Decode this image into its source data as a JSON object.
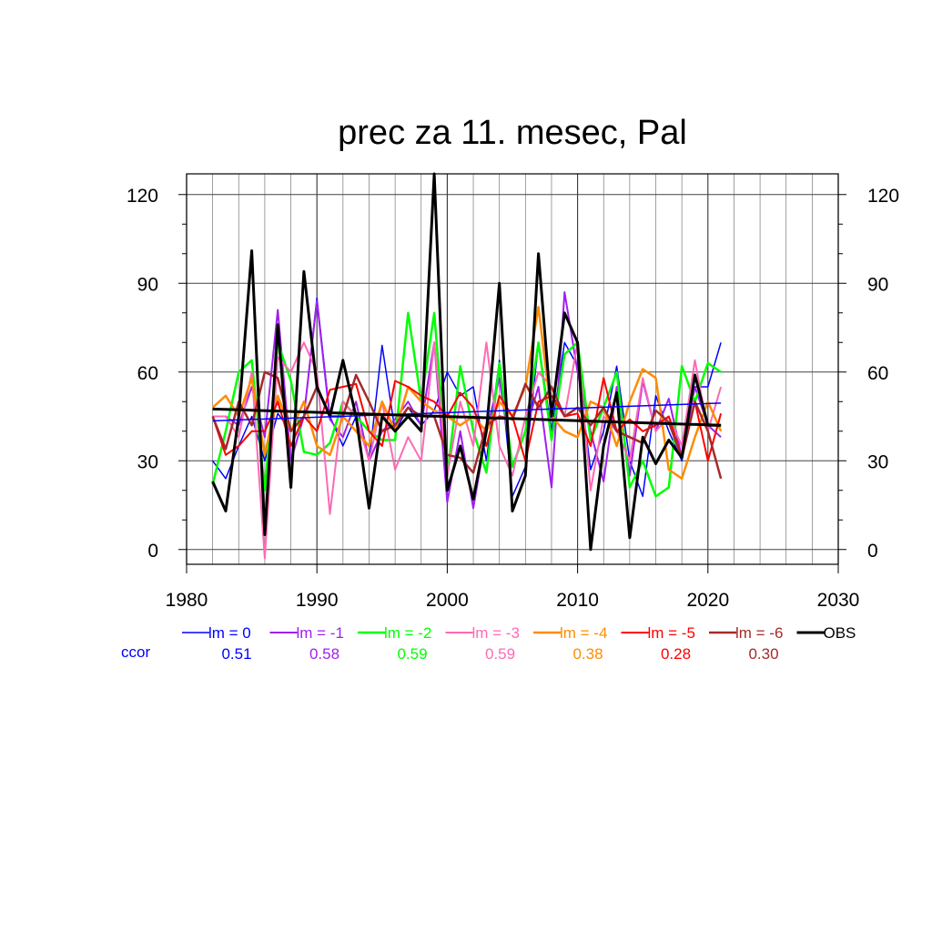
{
  "chart_data": {
    "type": "line",
    "title": "prec za 11. mesec, Pal",
    "xlim": [
      1980,
      2030
    ],
    "ylim": [
      -5,
      127
    ],
    "x_ticks": [
      "1980",
      "1990",
      "2000",
      "2010",
      "2020",
      "2030"
    ],
    "x_tick_values": [
      1980,
      1990,
      2000,
      2010,
      2020,
      2030
    ],
    "y_ticks": [
      "0",
      "30",
      "60",
      "90",
      "120"
    ],
    "y_tick_values": [
      0,
      30,
      60,
      90,
      120
    ],
    "grid": true,
    "legend_placement": "bottom",
    "ccor_label": "ccor",
    "x": [
      1982,
      1983,
      1984,
      1985,
      1986,
      1987,
      1988,
      1989,
      1990,
      1991,
      1992,
      1993,
      1994,
      1995,
      1996,
      1997,
      1998,
      1999,
      2000,
      2001,
      2002,
      2003,
      2004,
      2005,
      2006,
      2007,
      2008,
      2009,
      2010,
      2011,
      2012,
      2013,
      2014,
      2015,
      2016,
      2017,
      2018,
      2019,
      2020,
      2021
    ],
    "series": [
      {
        "name": "lm = 0",
        "ccor": "0.51",
        "color": "#0000ff",
        "width": 1.5,
        "values": [
          30,
          24,
          35,
          45,
          30,
          46,
          40,
          45,
          85,
          45,
          35,
          45,
          30,
          69,
          40,
          48,
          42,
          47,
          60,
          52,
          55,
          30,
          64,
          18,
          28,
          70,
          40,
          70,
          62,
          27,
          40,
          62,
          30,
          18,
          52,
          40,
          30,
          55,
          55,
          70
        ],
        "trend": [
          43.5,
          49.5
        ]
      },
      {
        "name": "lm = -1",
        "ccor": "0.58",
        "color": "#a020f0",
        "width": 2,
        "values": [
          45,
          45,
          42,
          55,
          38,
          81,
          30,
          45,
          84,
          44,
          38,
          50,
          30,
          40,
          44,
          50,
          42,
          70,
          16,
          40,
          14,
          40,
          58,
          28,
          40,
          55,
          21,
          87,
          60,
          40,
          23,
          55,
          25,
          57,
          40,
          51,
          31,
          55,
          42,
          38
        ]
      },
      {
        "name": "lm = -2",
        "ccor": "0.59",
        "color": "#00ff00",
        "width": 2.5,
        "values": [
          22,
          40,
          60,
          64,
          20,
          70,
          57,
          33,
          32,
          36,
          50,
          45,
          40,
          37,
          37,
          80,
          50,
          80,
          25,
          62,
          40,
          26,
          63,
          28,
          40,
          70,
          37,
          66,
          70,
          37,
          48,
          60,
          21,
          30,
          18,
          21,
          62,
          50,
          63,
          60
        ]
      },
      {
        "name": "lm = -3",
        "ccor": "0.59",
        "color": "#ff69b4",
        "width": 2,
        "values": [
          45,
          45,
          38,
          60,
          -3,
          65,
          60,
          70,
          60,
          12,
          50,
          45,
          30,
          50,
          27,
          38,
          30,
          70,
          25,
          50,
          35,
          70,
          35,
          25,
          45,
          60,
          55,
          45,
          70,
          20,
          45,
          40,
          30,
          58,
          40,
          45,
          35,
          64,
          40,
          55
        ]
      },
      {
        "name": "lm = -4",
        "ccor": "0.38",
        "color": "#ff8c00",
        "width": 2.5,
        "values": [
          48,
          52,
          45,
          58,
          32,
          52,
          40,
          50,
          35,
          32,
          45,
          40,
          35,
          50,
          40,
          55,
          50,
          47,
          45,
          42,
          45,
          40,
          50,
          45,
          55,
          82,
          45,
          40,
          38,
          50,
          48,
          35,
          50,
          61,
          58,
          27,
          24,
          38,
          50,
          40
        ]
      },
      {
        "name": "lm = -5",
        "ccor": "0.28",
        "color": "#ff0000",
        "width": 2,
        "values": [
          45,
          32,
          35,
          40,
          40,
          50,
          35,
          45,
          40,
          54,
          55,
          56,
          40,
          35,
          57,
          55,
          52,
          50,
          45,
          53,
          48,
          35,
          52,
          45,
          30,
          50,
          52,
          45,
          46,
          35,
          58,
          40,
          44,
          40,
          42,
          45,
          31,
          50,
          30,
          46
        ]
      },
      {
        "name": "lm = -6",
        "ccor": "0.30",
        "color": "#a52a2a",
        "width": 2.5,
        "values": [
          45,
          34,
          50,
          42,
          60,
          58,
          40,
          45,
          55,
          45,
          45,
          59,
          50,
          40,
          42,
          48,
          45,
          45,
          32,
          31,
          26,
          42,
          45,
          44,
          56,
          48,
          55,
          45,
          48,
          42,
          48,
          40,
          38,
          36,
          47,
          43,
          31,
          50,
          40,
          24
        ]
      },
      {
        "name": "OBS",
        "ccor": "",
        "color": "#000000",
        "width": 3,
        "values": [
          23,
          13,
          45,
          101,
          5,
          76,
          21,
          94,
          55,
          45,
          64,
          45,
          14,
          45,
          40,
          45,
          40,
          127,
          20,
          35,
          17,
          40,
          90,
          13,
          25,
          100,
          45,
          80,
          70,
          0,
          35,
          53,
          4,
          38,
          29,
          37,
          31,
          59,
          42,
          42
        ],
        "trend": [
          47.5,
          42
        ]
      }
    ]
  }
}
